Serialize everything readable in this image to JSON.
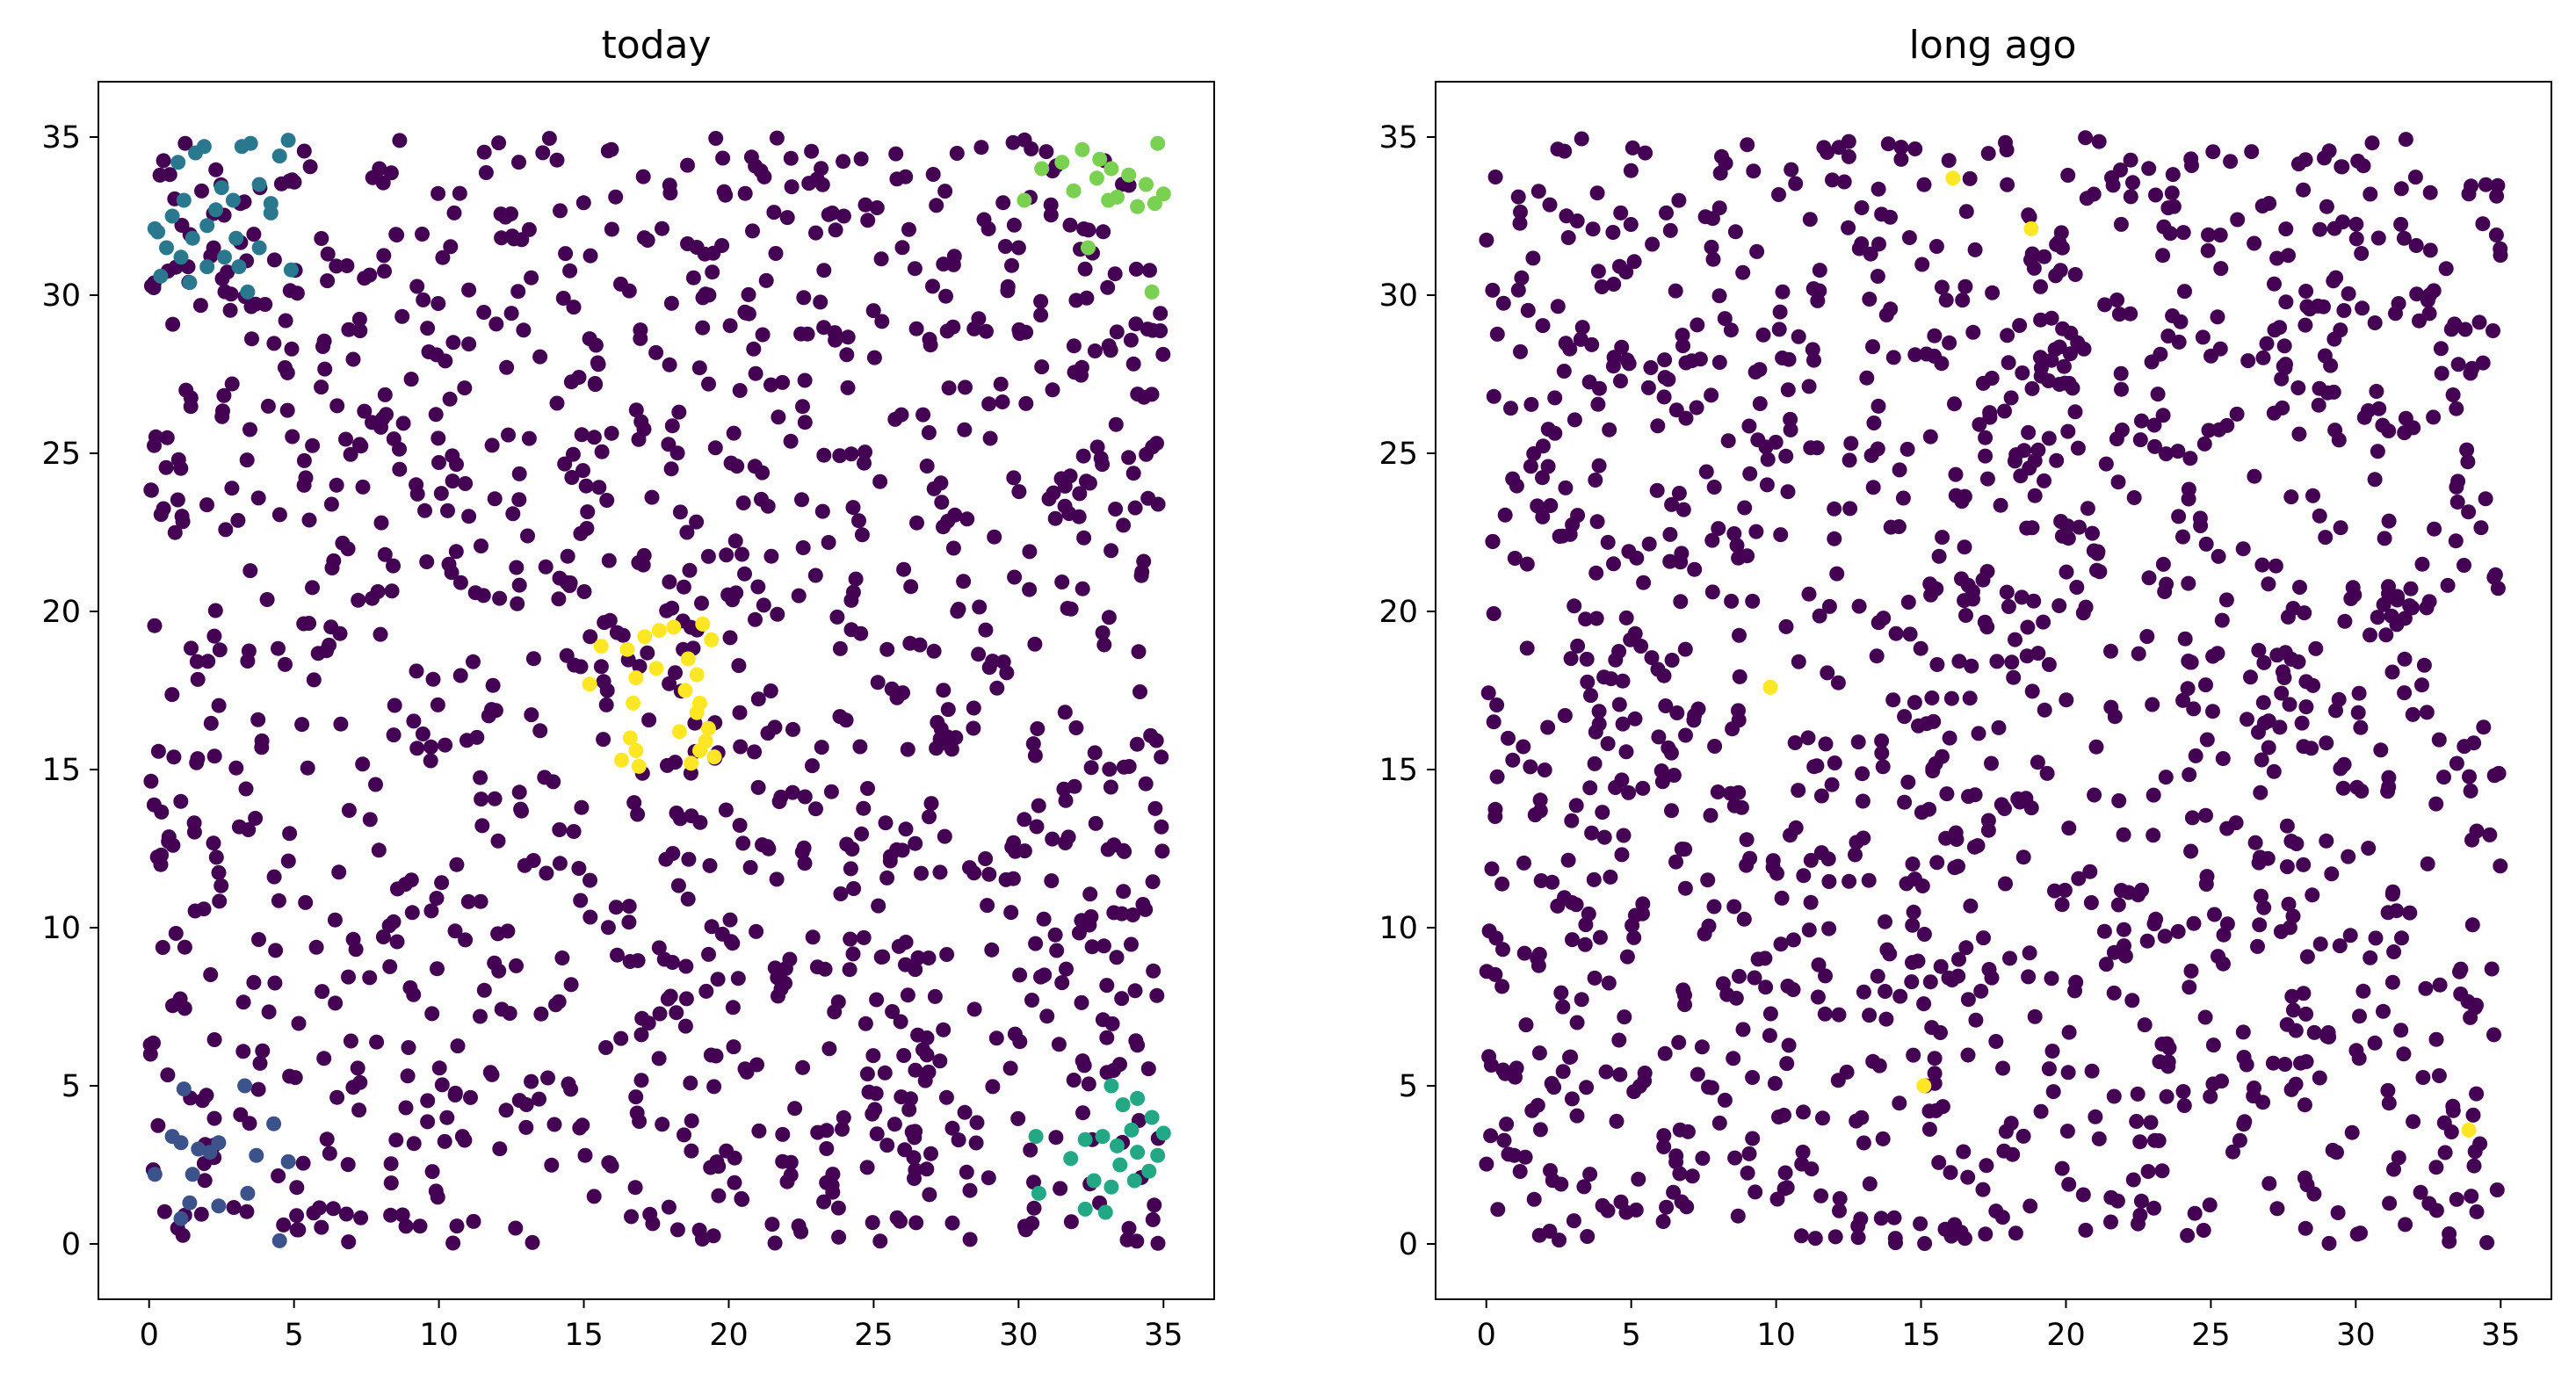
{
  "chart_data": [
    {
      "type": "scatter",
      "title": "today",
      "xlim": [
        -1.75,
        36.75
      ],
      "ylim": [
        -1.75,
        36.75
      ],
      "xticks": [
        0,
        5,
        10,
        15,
        20,
        25,
        30,
        35
      ],
      "yticks": [
        0,
        5,
        10,
        15,
        20,
        25,
        30,
        35
      ],
      "grid": false,
      "point_count": 1400,
      "background_color": "#440154",
      "clusters": [
        {
          "color": "#2a788e",
          "points": [
            [
              0.3,
              32.0
            ],
            [
              0.8,
              32.5
            ],
            [
              1.2,
              33.0
            ],
            [
              0.6,
              31.5
            ],
            [
              1.5,
              31.8
            ],
            [
              2.0,
              32.2
            ],
            [
              1.0,
              34.2
            ],
            [
              1.6,
              34.5
            ],
            [
              1.9,
              34.7
            ],
            [
              2.5,
              33.4
            ],
            [
              2.9,
              33.0
            ],
            [
              3.2,
              34.7
            ],
            [
              3.5,
              34.8
            ],
            [
              3.8,
              33.5
            ],
            [
              4.2,
              32.6
            ],
            [
              4.8,
              34.9
            ],
            [
              4.5,
              34.4
            ],
            [
              1.4,
              30.4
            ],
            [
              2.0,
              30.9
            ],
            [
              2.6,
              31.2
            ],
            [
              3.1,
              30.9
            ],
            [
              3.4,
              30.1
            ],
            [
              3.8,
              31.5
            ],
            [
              4.2,
              32.9
            ],
            [
              0.4,
              30.6
            ],
            [
              1.1,
              31.2
            ],
            [
              3.0,
              31.8
            ],
            [
              4.9,
              30.8
            ],
            [
              2.3,
              32.7
            ],
            [
              0.2,
              32.1
            ]
          ]
        },
        {
          "color": "#7ad151",
          "points": [
            [
              30.2,
              33.0
            ],
            [
              30.8,
              34.0
            ],
            [
              31.5,
              34.2
            ],
            [
              32.2,
              34.6
            ],
            [
              32.8,
              34.3
            ],
            [
              33.2,
              34.0
            ],
            [
              33.8,
              33.8
            ],
            [
              34.4,
              33.5
            ],
            [
              35.0,
              33.2
            ],
            [
              34.8,
              34.8
            ],
            [
              33.4,
              33.1
            ],
            [
              32.7,
              33.7
            ],
            [
              34.1,
              32.8
            ],
            [
              34.7,
              32.9
            ],
            [
              32.4,
              31.5
            ],
            [
              34.6,
              30.1
            ],
            [
              31.9,
              33.3
            ],
            [
              33.1,
              33.0
            ]
          ]
        },
        {
          "color": "#3b528b",
          "points": [
            [
              0.2,
              2.2
            ],
            [
              0.8,
              3.4
            ],
            [
              1.2,
              4.9
            ],
            [
              1.1,
              3.2
            ],
            [
              1.5,
              2.2
            ],
            [
              1.7,
              3.0
            ],
            [
              2.1,
              2.9
            ],
            [
              2.4,
              3.2
            ],
            [
              1.4,
              1.3
            ],
            [
              1.1,
              0.8
            ],
            [
              2.4,
              1.2
            ],
            [
              3.3,
              5.0
            ],
            [
              3.7,
              2.8
            ],
            [
              4.3,
              3.8
            ],
            [
              4.8,
              2.6
            ],
            [
              3.4,
              1.6
            ],
            [
              4.5,
              0.1
            ]
          ]
        },
        {
          "color": "#22a884",
          "points": [
            [
              33.2,
              5.0
            ],
            [
              33.6,
              4.4
            ],
            [
              34.1,
              4.6
            ],
            [
              34.6,
              4.0
            ],
            [
              35.0,
              3.5
            ],
            [
              33.9,
              3.6
            ],
            [
              33.4,
              3.1
            ],
            [
              32.9,
              3.4
            ],
            [
              32.3,
              3.3
            ],
            [
              33.5,
              2.5
            ],
            [
              34.0,
              2.0
            ],
            [
              34.5,
              2.3
            ],
            [
              33.2,
              1.8
            ],
            [
              32.6,
              2.0
            ],
            [
              31.8,
              2.7
            ],
            [
              30.6,
              3.4
            ],
            [
              30.7,
              1.6
            ],
            [
              32.3,
              1.1
            ],
            [
              33.0,
              1.0
            ],
            [
              34.1,
              2.9
            ],
            [
              34.8,
              2.8
            ]
          ]
        },
        {
          "color": "#fde725",
          "points": [
            [
              15.2,
              17.7
            ],
            [
              15.6,
              18.9
            ],
            [
              16.5,
              18.8
            ],
            [
              17.1,
              19.2
            ],
            [
              17.6,
              19.4
            ],
            [
              18.1,
              19.5
            ],
            [
              18.6,
              18.5
            ],
            [
              18.9,
              18.0
            ],
            [
              19.1,
              19.6
            ],
            [
              19.4,
              19.1
            ],
            [
              19.0,
              17.1
            ],
            [
              18.5,
              17.5
            ],
            [
              17.5,
              18.2
            ],
            [
              16.8,
              17.9
            ],
            [
              16.7,
              17.1
            ],
            [
              16.6,
              16.0
            ],
            [
              16.8,
              15.6
            ],
            [
              16.3,
              15.3
            ],
            [
              16.9,
              15.1
            ],
            [
              18.3,
              16.2
            ],
            [
              18.7,
              15.2
            ],
            [
              19.0,
              15.6
            ],
            [
              19.2,
              15.9
            ],
            [
              19.5,
              15.4
            ],
            [
              19.3,
              16.3
            ],
            [
              18.9,
              16.8
            ]
          ]
        }
      ]
    },
    {
      "type": "scatter",
      "title": "long ago",
      "xlim": [
        -1.75,
        36.75
      ],
      "ylim": [
        -1.75,
        36.75
      ],
      "xticks": [
        0,
        5,
        10,
        15,
        20,
        25,
        30,
        35
      ],
      "yticks": [
        0,
        5,
        10,
        15,
        20,
        25,
        30,
        35
      ],
      "grid": false,
      "point_count": 1400,
      "background_color": "#440154",
      "clusters": [
        {
          "color": "#fde725",
          "points": [
            [
              16.1,
              33.7
            ],
            [
              18.8,
              32.1
            ],
            [
              9.8,
              17.6
            ],
            [
              15.1,
              5.0
            ],
            [
              33.9,
              3.6
            ]
          ]
        }
      ]
    }
  ]
}
